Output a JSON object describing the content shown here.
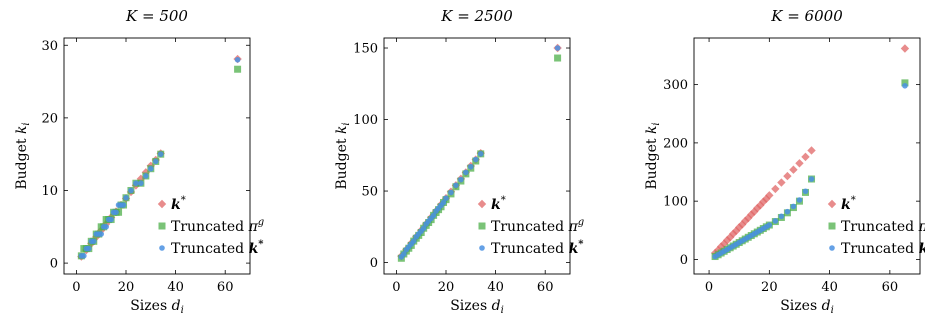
{
  "chart_data": [
    {
      "type": "scatter",
      "title": "K = 500",
      "xlabel": "Sizes d_i",
      "ylabel": "Budget k_i",
      "xlim": [
        -5,
        70
      ],
      "ylim": [
        -1.5,
        31
      ],
      "xticks": [
        0,
        20,
        40,
        60
      ],
      "yticks": [
        0,
        10,
        20,
        30
      ],
      "legend_position": "lower-right",
      "series": [
        {
          "name": "k*",
          "marker": "diamond",
          "color": "#e06666",
          "x": [
            2,
            4,
            6,
            8,
            10,
            12,
            14,
            16,
            18,
            20,
            22,
            24,
            26,
            28,
            30,
            32,
            34,
            65
          ],
          "y": [
            0.9,
            1.8,
            2.7,
            3.6,
            4.5,
            5.4,
            6.3,
            7.1,
            8.0,
            8.9,
            9.8,
            10.7,
            11.6,
            12.5,
            13.4,
            14.2,
            15.1,
            28.1
          ]
        },
        {
          "name": "Truncated π^g",
          "marker": "square",
          "color": "#4daf4a",
          "x": [
            2,
            3,
            4,
            5,
            6,
            7,
            8,
            9,
            10,
            11,
            12,
            13,
            14,
            15,
            16,
            17,
            18,
            19,
            20,
            22,
            24,
            26,
            28,
            30,
            32,
            34,
            65
          ],
          "y": [
            1,
            2,
            2,
            2,
            3,
            3,
            4,
            4,
            5,
            5,
            6,
            6,
            6,
            7,
            7,
            7,
            8,
            8,
            9,
            10,
            11,
            11,
            12,
            13,
            14,
            15,
            26.7
          ]
        },
        {
          "name": "Truncated k*",
          "marker": "circle",
          "color": "#4a90e2",
          "x": [
            2,
            3,
            4,
            5,
            6,
            7,
            8,
            9,
            10,
            11,
            12,
            13,
            14,
            15,
            16,
            17,
            18,
            19,
            20,
            22,
            24,
            26,
            28,
            30,
            32,
            34,
            65
          ],
          "y": [
            1,
            1,
            2,
            2,
            3,
            3,
            4,
            4,
            4,
            5,
            5,
            6,
            6,
            7,
            7,
            8,
            8,
            8,
            9,
            10,
            11,
            11,
            12,
            13,
            14,
            15,
            28
          ]
        }
      ]
    },
    {
      "type": "scatter",
      "title": "K = 2500",
      "xlabel": "Sizes d_i",
      "ylabel": "Budget k_i",
      "xlim": [
        -5,
        70
      ],
      "ylim": [
        -8,
        157
      ],
      "xticks": [
        0,
        20,
        40,
        60
      ],
      "yticks": [
        0,
        50,
        100,
        150
      ],
      "legend_position": "lower-right",
      "series": [
        {
          "name": "k*",
          "marker": "diamond",
          "color": "#e06666",
          "x": [
            2,
            4,
            6,
            8,
            10,
            12,
            14,
            16,
            18,
            20,
            22,
            24,
            26,
            28,
            30,
            32,
            34,
            65
          ],
          "y": [
            4.5,
            9,
            13.5,
            18,
            22.5,
            27,
            31.5,
            36,
            40.5,
            45,
            49.5,
            54,
            58.5,
            63,
            67.5,
            72,
            76.5,
            150
          ]
        },
        {
          "name": "Truncated π^g",
          "marker": "square",
          "color": "#4daf4a",
          "x": [
            2,
            3,
            4,
            5,
            6,
            7,
            8,
            9,
            10,
            11,
            12,
            13,
            14,
            15,
            16,
            17,
            18,
            19,
            20,
            22,
            24,
            26,
            28,
            30,
            32,
            34,
            65
          ],
          "y": [
            3,
            6,
            8,
            10,
            12,
            15,
            17,
            19,
            21,
            24,
            26,
            28,
            30,
            33,
            35,
            37,
            39,
            42,
            44,
            48,
            53,
            57,
            62,
            66,
            71,
            76,
            143
          ]
        },
        {
          "name": "Truncated k*",
          "marker": "circle",
          "color": "#4a90e2",
          "x": [
            2,
            3,
            4,
            5,
            6,
            7,
            8,
            9,
            10,
            11,
            12,
            13,
            14,
            15,
            16,
            17,
            18,
            19,
            20,
            22,
            24,
            26,
            28,
            30,
            32,
            34,
            65
          ],
          "y": [
            4,
            6,
            9,
            11,
            13,
            15,
            18,
            20,
            22,
            24,
            27,
            29,
            31,
            33,
            36,
            38,
            40,
            42,
            45,
            49,
            54,
            58,
            63,
            67,
            72,
            76,
            150
          ]
        }
      ]
    },
    {
      "type": "scatter",
      "title": "K = 6000",
      "xlabel": "Sizes d_i",
      "ylabel": "Budget k_i",
      "xlim": [
        -5,
        70
      ],
      "ylim": [
        -25,
        380
      ],
      "xticks": [
        0,
        20,
        40,
        60
      ],
      "yticks": [
        0,
        100,
        200,
        300
      ],
      "legend_position": "lower-right",
      "series": [
        {
          "name": "k*",
          "marker": "diamond",
          "color": "#e06666",
          "x": [
            2,
            3,
            4,
            5,
            6,
            7,
            8,
            9,
            10,
            11,
            12,
            13,
            14,
            15,
            16,
            17,
            18,
            19,
            20,
            22,
            24,
            26,
            28,
            30,
            32,
            34,
            65
          ],
          "y": [
            11,
            16,
            22,
            27,
            33,
            38,
            44,
            49,
            55,
            60,
            66,
            71,
            77,
            82,
            88,
            93,
            99,
            104,
            110,
            121,
            132,
            143,
            154,
            165,
            176,
            187,
            362
          ]
        },
        {
          "name": "Truncated π^g",
          "marker": "square",
          "color": "#4daf4a",
          "x": [
            2,
            3,
            4,
            5,
            6,
            7,
            8,
            9,
            10,
            11,
            12,
            13,
            14,
            15,
            16,
            17,
            18,
            19,
            20,
            22,
            24,
            26,
            28,
            30,
            32,
            34,
            65
          ],
          "y": [
            5,
            8,
            11,
            14,
            17,
            20,
            23,
            26,
            29,
            32,
            35,
            38,
            41,
            44,
            47,
            50,
            53,
            56,
            59,
            65,
            72,
            80,
            89,
            100,
            115,
            138,
            303
          ]
        },
        {
          "name": "Truncated k*",
          "marker": "circle",
          "color": "#4a90e2",
          "x": [
            2,
            3,
            4,
            5,
            6,
            7,
            8,
            9,
            10,
            11,
            12,
            13,
            14,
            15,
            16,
            17,
            18,
            19,
            20,
            22,
            24,
            26,
            28,
            30,
            32,
            34,
            65
          ],
          "y": [
            5,
            8,
            11,
            14,
            17,
            20,
            23,
            26,
            29,
            32,
            35,
            38,
            41,
            44,
            47,
            50,
            53,
            56,
            59,
            66,
            74,
            82,
            91,
            102,
            117,
            138,
            298
          ]
        }
      ]
    }
  ]
}
